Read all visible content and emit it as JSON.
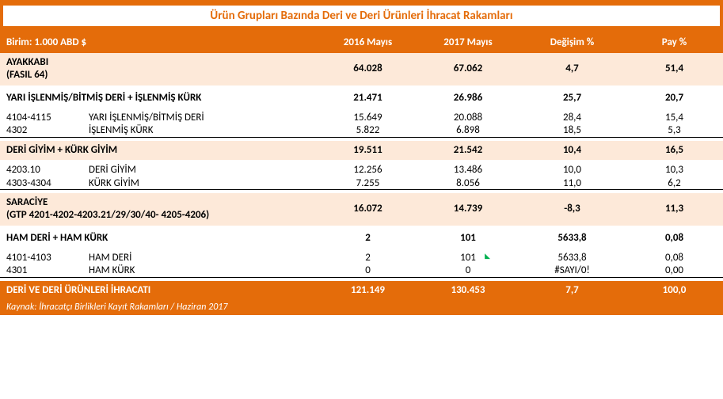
{
  "title": "Ürün Grupları Bazında Deri ve Deri Ürünleri İhracat Rakamları",
  "header": {
    "unit": "Birim: 1.000 ABD $",
    "col1": "2016 Mayıs",
    "col2": "2017 Mayıs",
    "col3": "Değişim %",
    "col4": "Pay %"
  },
  "sections": [
    {
      "beige": true,
      "label_line1": "AYAKKABI",
      "label_line2": "(FASIL 64)",
      "v1": "64.028",
      "v2": "67.062",
      "v3": "4,7",
      "v4": "51,4",
      "subs": []
    },
    {
      "label": "YARI İŞLENMİŞ/BİTMİŞ DERİ + İŞLENMİŞ KÜRK",
      "v1": "21.471",
      "v2": "26.986",
      "v3": "25,7",
      "v4": "20,7",
      "subs": [
        {
          "code": "4104-4115",
          "label": "YARI İŞLENMİŞ/BİTMİŞ DERİ",
          "v1": "15.649",
          "v2": "20.088",
          "v3": "28,4",
          "v4": "15,4"
        },
        {
          "code": "4302",
          "label": "İŞLENMİŞ KÜRK",
          "v1": "5.822",
          "v2": "6.898",
          "v3": "18,5",
          "v4": "5,3",
          "underline": true
        }
      ]
    },
    {
      "beige": true,
      "label": "DERİ GİYİM + KÜRK GİYİM",
      "v1": "19.511",
      "v2": "21.542",
      "v3": "10,4",
      "v4": "16,5",
      "subs": [
        {
          "code": "4203.10",
          "label": "DERİ GİYİM",
          "v1": "12.256",
          "v2": "13.486",
          "v3": "10,0",
          "v4": "10,3"
        },
        {
          "code": "4303-4304",
          "label": "KÜRK GİYİM",
          "v1": "7.255",
          "v2": "8.056",
          "v3": "11,0",
          "v4": "6,2",
          "underline": true
        }
      ]
    },
    {
      "beige": true,
      "label_line1": "SARACİYE",
      "label_line2": "(GTP 4201-4202-4203.21/29/30/40- 4205-4206)",
      "v1": "16.072",
      "v2": "14.739",
      "v3": "-8,3",
      "v4": "11,3",
      "subs": []
    },
    {
      "label": "HAM DERİ + HAM KÜRK",
      "v1": "2",
      "v2": "101",
      "v3": "5633,8",
      "v4": "0,08",
      "subs": [
        {
          "code": "4101-4103",
          "label": "HAM DERİ",
          "v1": "2",
          "v2": "101",
          "v3": "5633,8",
          "v4": "0,08",
          "marker": true
        },
        {
          "code": "4301",
          "label": "HAM KÜRK",
          "v1": "0",
          "v2": "0",
          "v3": "#SAYI/0!",
          "v4": "0,00",
          "underline": true
        }
      ]
    }
  ],
  "total": {
    "label": "DERİ VE DERİ ÜRÜNLERİ İHRACATI",
    "v1": "121.149",
    "v2": "130.453",
    "v3": "7,7",
    "v4": "100,0"
  },
  "footer": "Kaynak: İhracatçı Birlikleri Kayıt Rakamları / Haziran 2017",
  "colors": {
    "orange": "#E46C0A",
    "beige": "#FDE9D9",
    "white": "#ffffff",
    "black": "#000000",
    "marker_green": "#00B050"
  }
}
